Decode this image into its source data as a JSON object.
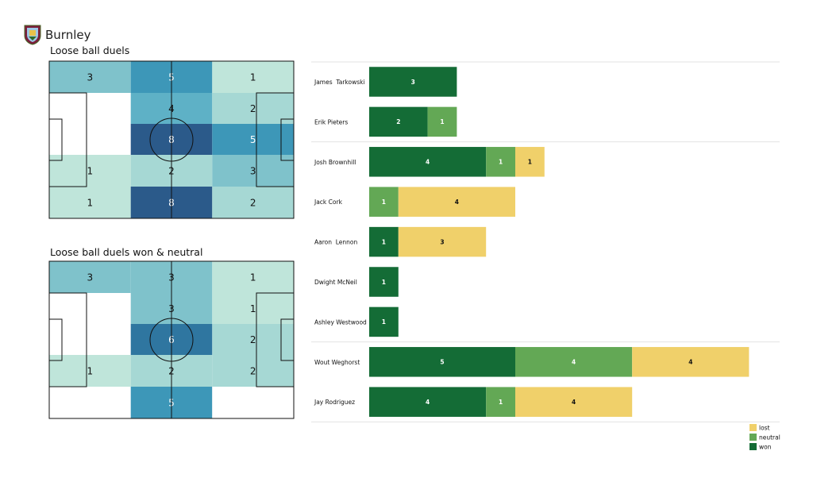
{
  "header": {
    "team": "Burnley",
    "crest_icon": "burnley-crest-icon"
  },
  "colors": {
    "won": "#146c36",
    "neutral": "#63a855",
    "lost": "#f0d06a",
    "grid": "#e3e3e3",
    "pitch_line": "#111111"
  },
  "chart_data": [
    {
      "type": "heatmap",
      "title": "Loose ball duels",
      "rows": 5,
      "cols": 3,
      "values": [
        [
          3,
          5,
          1
        ],
        [
          0,
          4,
          2
        ],
        [
          0,
          8,
          5
        ],
        [
          1,
          2,
          3
        ],
        [
          1,
          8,
          2
        ]
      ]
    },
    {
      "type": "heatmap",
      "title": "Loose ball duels won & neutral",
      "rows": 5,
      "cols": 3,
      "values": [
        [
          3,
          3,
          1
        ],
        [
          0,
          3,
          1
        ],
        [
          0,
          6,
          2
        ],
        [
          1,
          2,
          2
        ],
        [
          0,
          5,
          0
        ]
      ]
    },
    {
      "type": "bar",
      "orientation": "horizontal",
      "stacked": true,
      "categories": [
        "James  Tarkowski",
        "Erik Pieters",
        "Josh Brownhill",
        "Jack Cork",
        "Aaron  Lennon",
        "Dwight McNeil",
        "Ashley Westwood",
        "Wout Weghorst",
        "Jay Rodriguez"
      ],
      "groups": [
        2,
        5,
        2
      ],
      "series": [
        {
          "name": "won",
          "values": [
            3,
            2,
            4,
            0,
            1,
            1,
            1,
            5,
            4
          ]
        },
        {
          "name": "neutral",
          "values": [
            0,
            1,
            1,
            1,
            0,
            0,
            0,
            4,
            1
          ]
        },
        {
          "name": "lost",
          "values": [
            0,
            0,
            1,
            4,
            3,
            0,
            0,
            4,
            4
          ]
        }
      ],
      "legend": [
        "lost",
        "neutral",
        "won"
      ],
      "legend_position": "bottom-right"
    }
  ]
}
